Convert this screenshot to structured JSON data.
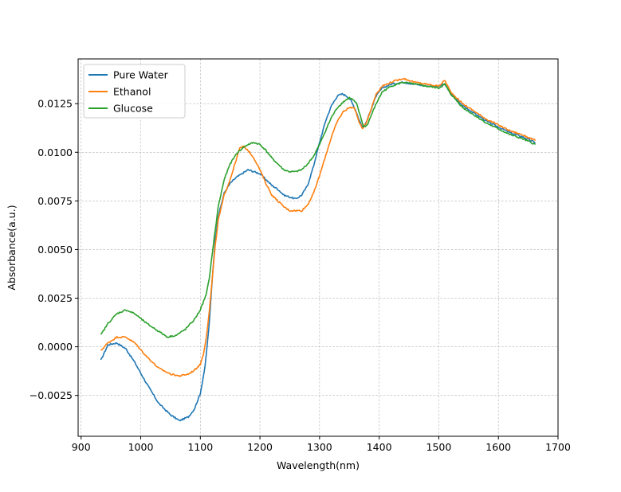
{
  "chart_data": {
    "type": "line",
    "title": "",
    "xlabel": "Wavelength(nm)",
    "ylabel": "Absorbance(a.u.)",
    "xlim": [
      895,
      1700
    ],
    "ylim": [
      -0.0046,
      0.0148
    ],
    "xticks": [
      900,
      1000,
      1100,
      1200,
      1300,
      1400,
      1500,
      1600,
      1700
    ],
    "xtick_labels": [
      "900",
      "1000",
      "1100",
      "1200",
      "1300",
      "1400",
      "1500",
      "1600",
      "1700"
    ],
    "yticks": [
      -0.0025,
      0.0,
      0.0025,
      0.005,
      0.0075,
      0.01,
      0.0125
    ],
    "ytick_labels": [
      "−0.0025",
      "0.0000",
      "0.0025",
      "0.0050",
      "0.0075",
      "0.0100",
      "0.0125"
    ],
    "grid": true,
    "legend_position": "top-left",
    "series": [
      {
        "name": "Pure Water",
        "color": "#1f77b4",
        "x": [
          933,
          945,
          960,
          975,
          990,
          1010,
          1030,
          1050,
          1065,
          1080,
          1090,
          1100,
          1108,
          1115,
          1120,
          1125,
          1130,
          1140,
          1150,
          1160,
          1170,
          1180,
          1190,
          1200,
          1210,
          1220,
          1230,
          1240,
          1250,
          1260,
          1270,
          1280,
          1290,
          1300,
          1310,
          1320,
          1330,
          1338,
          1345,
          1352,
          1360,
          1366,
          1372,
          1378,
          1385,
          1395,
          1405,
          1420,
          1440,
          1460,
          1480,
          1500,
          1510,
          1520,
          1540,
          1560,
          1580,
          1600,
          1620,
          1640,
          1662
        ],
        "y": [
          -0.0007,
          0.0001,
          0.0002,
          -0.0001,
          -0.0008,
          -0.0019,
          -0.0029,
          -0.0035,
          -0.0038,
          -0.0036,
          -0.0032,
          -0.0024,
          -0.001,
          0.0012,
          0.0035,
          0.0055,
          0.0067,
          0.0079,
          0.0084,
          0.0087,
          0.0089,
          0.0091,
          0.009,
          0.0089,
          0.0086,
          0.0083,
          0.0081,
          0.0078,
          0.0077,
          0.0076,
          0.0078,
          0.0083,
          0.0093,
          0.0105,
          0.0116,
          0.0124,
          0.0129,
          0.013,
          0.0129,
          0.0127,
          0.0122,
          0.0117,
          0.0113,
          0.0115,
          0.0121,
          0.0129,
          0.0133,
          0.0135,
          0.0136,
          0.0135,
          0.0134,
          0.0134,
          0.0135,
          0.013,
          0.0124,
          0.012,
          0.0116,
          0.0113,
          0.011,
          0.0108,
          0.0105
        ]
      },
      {
        "name": "Ethanol",
        "color": "#ff7f0e",
        "x": [
          933,
          945,
          960,
          975,
          990,
          1010,
          1030,
          1050,
          1065,
          1080,
          1090,
          1100,
          1105,
          1110,
          1115,
          1120,
          1125,
          1130,
          1140,
          1150,
          1160,
          1166,
          1172,
          1180,
          1190,
          1200,
          1210,
          1220,
          1230,
          1240,
          1250,
          1260,
          1270,
          1280,
          1290,
          1300,
          1310,
          1320,
          1330,
          1340,
          1350,
          1358,
          1366,
          1372,
          1378,
          1385,
          1395,
          1405,
          1420,
          1440,
          1460,
          1480,
          1500,
          1510,
          1520,
          1540,
          1560,
          1580,
          1600,
          1620,
          1640,
          1662
        ],
        "y": [
          -0.0002,
          0.0002,
          0.0005,
          0.0005,
          0.0002,
          -0.0005,
          -0.0011,
          -0.0014,
          -0.0015,
          -0.0014,
          -0.0012,
          -0.0009,
          -0.0004,
          0.0005,
          0.0018,
          0.0035,
          0.0052,
          0.0065,
          0.0078,
          0.0086,
          0.0096,
          0.0102,
          0.0103,
          0.0101,
          0.0097,
          0.0091,
          0.0084,
          0.0078,
          0.0075,
          0.0072,
          0.007,
          0.007,
          0.007,
          0.0073,
          0.0079,
          0.0088,
          0.0098,
          0.0108,
          0.0116,
          0.0121,
          0.0123,
          0.0123,
          0.0116,
          0.0112,
          0.0115,
          0.0121,
          0.013,
          0.0134,
          0.0136,
          0.0138,
          0.0136,
          0.0135,
          0.0134,
          0.0137,
          0.0131,
          0.0125,
          0.0121,
          0.0117,
          0.0114,
          0.0111,
          0.0109,
          0.0106
        ]
      },
      {
        "name": "Glucose",
        "color": "#2ca02c",
        "x": [
          933,
          945,
          960,
          975,
          990,
          1010,
          1030,
          1045,
          1060,
          1075,
          1090,
          1100,
          1110,
          1115,
          1120,
          1125,
          1130,
          1140,
          1150,
          1160,
          1170,
          1180,
          1190,
          1200,
          1210,
          1220,
          1230,
          1240,
          1250,
          1260,
          1270,
          1280,
          1290,
          1300,
          1310,
          1320,
          1330,
          1340,
          1350,
          1356,
          1362,
          1368,
          1374,
          1380,
          1388,
          1395,
          1405,
          1420,
          1440,
          1460,
          1480,
          1500,
          1510,
          1520,
          1540,
          1560,
          1580,
          1600,
          1620,
          1640,
          1662
        ],
        "y": [
          0.0006,
          0.0012,
          0.0017,
          0.0019,
          0.0017,
          0.0012,
          0.0008,
          0.0005,
          0.0006,
          0.0009,
          0.0014,
          0.0019,
          0.0027,
          0.0035,
          0.0048,
          0.006,
          0.0072,
          0.0086,
          0.0094,
          0.0099,
          0.0102,
          0.0104,
          0.0105,
          0.0104,
          0.0101,
          0.0097,
          0.0094,
          0.0091,
          0.009,
          0.009,
          0.0091,
          0.0094,
          0.0098,
          0.0104,
          0.0111,
          0.0118,
          0.0123,
          0.0126,
          0.0128,
          0.0127,
          0.0125,
          0.0119,
          0.0113,
          0.0114,
          0.012,
          0.0125,
          0.0131,
          0.0134,
          0.0136,
          0.0135,
          0.0134,
          0.0133,
          0.0135,
          0.013,
          0.0123,
          0.0119,
          0.0115,
          0.0112,
          0.0109,
          0.0107,
          0.0104
        ]
      }
    ]
  }
}
